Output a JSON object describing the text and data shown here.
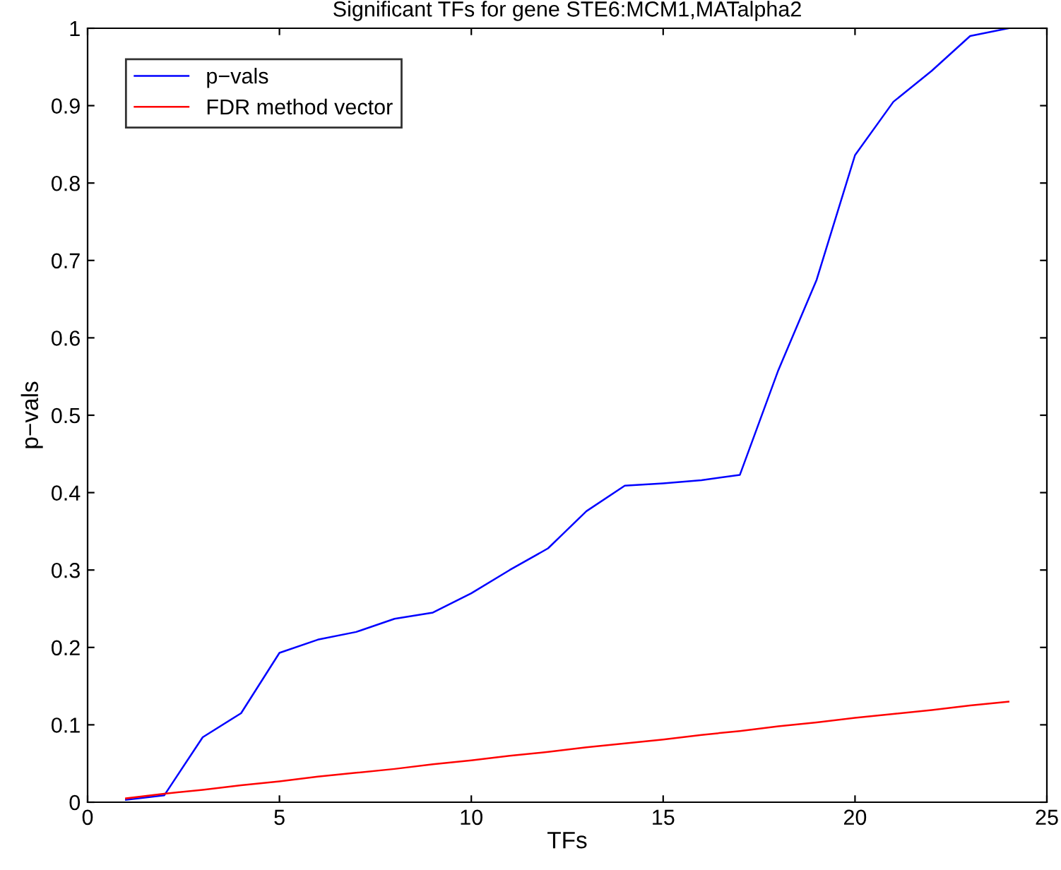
{
  "chart_data": {
    "type": "line",
    "title": "Significant TFs for gene STE6:MCM1,MATalpha2",
    "xlabel": "TFs",
    "ylabel": "p−vals",
    "x": [
      1,
      2,
      3,
      4,
      5,
      6,
      7,
      8,
      9,
      10,
      11,
      12,
      13,
      14,
      15,
      16,
      17,
      18,
      19,
      20,
      21,
      22,
      23,
      24
    ],
    "series": [
      {
        "name": "p−vals",
        "color": "#0000ff",
        "values": [
          0.003,
          0.009,
          0.084,
          0.115,
          0.193,
          0.21,
          0.22,
          0.237,
          0.245,
          0.27,
          0.3,
          0.328,
          0.376,
          0.409,
          0.412,
          0.416,
          0.423,
          0.558,
          0.675,
          0.836,
          0.905,
          0.945,
          0.99,
          1.0
        ]
      },
      {
        "name": "FDR method vector",
        "color": "#ff0000",
        "values": [
          0.005,
          0.011,
          0.016,
          0.022,
          0.027,
          0.033,
          0.038,
          0.043,
          0.049,
          0.054,
          0.06,
          0.065,
          0.071,
          0.076,
          0.081,
          0.087,
          0.092,
          0.098,
          0.103,
          0.109,
          0.114,
          0.119,
          0.125,
          0.13
        ]
      }
    ],
    "xlim": [
      0,
      25
    ],
    "xticks": [
      0,
      5,
      10,
      15,
      20,
      25
    ],
    "ylim": [
      0,
      1
    ],
    "yticks": [
      0,
      0.1,
      0.2,
      0.3,
      0.4,
      0.5,
      0.6,
      0.7,
      0.8,
      0.9,
      1
    ],
    "legend": "top left",
    "grid": false,
    "marker": "none",
    "line_style": "solid"
  }
}
